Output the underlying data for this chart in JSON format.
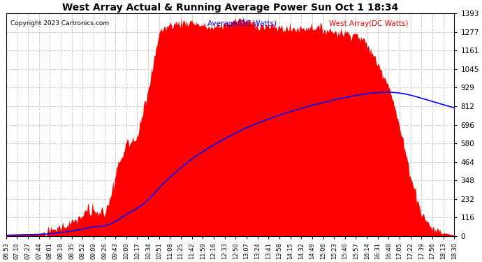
{
  "title": "West Array Actual & Running Average Power Sun Oct 1 18:34",
  "copyright": "Copyright 2023 Cartronics.com",
  "legend_avg": "Average(DC Watts)",
  "legend_west": "West Array(DC Watts)",
  "legend_avg_color": "blue",
  "legend_west_color": "red",
  "bg_color": "#ffffff",
  "plot_bg_color": "#ffffff",
  "fill_color": "red",
  "line_color": "blue",
  "grid_color": "#cccccc",
  "ymin": 0.0,
  "ymax": 1392.9,
  "yticks": [
    0.0,
    116.1,
    232.2,
    348.2,
    464.3,
    580.4,
    696.5,
    812.5,
    928.6,
    1044.7,
    1160.8,
    1276.8,
    1392.9
  ],
  "x_labels": [
    "06:53",
    "07:10",
    "07:27",
    "07:44",
    "08:01",
    "08:18",
    "08:35",
    "08:52",
    "09:09",
    "09:26",
    "09:43",
    "10:00",
    "10:17",
    "10:34",
    "10:51",
    "11:08",
    "11:25",
    "11:42",
    "11:59",
    "12:16",
    "12:33",
    "12:50",
    "13:07",
    "13:24",
    "13:41",
    "13:58",
    "14:15",
    "14:32",
    "14:49",
    "15:06",
    "15:23",
    "15:40",
    "15:57",
    "16:14",
    "16:31",
    "16:48",
    "17:05",
    "17:22",
    "17:39",
    "17:56",
    "18:13",
    "18:30"
  ]
}
